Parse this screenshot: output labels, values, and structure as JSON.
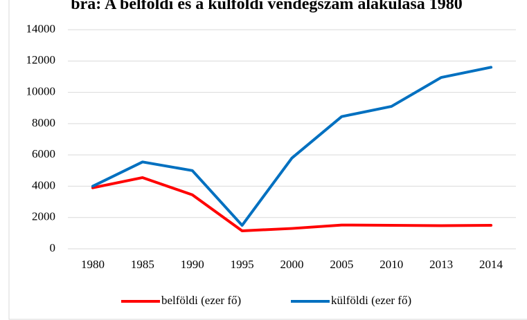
{
  "chart_data": {
    "type": "line",
    "title": "bra: A belföldi és a külföldi vendégszám alakulása 1980",
    "categories": [
      "1980",
      "1985",
      "1990",
      "1995",
      "2000",
      "2005",
      "2010",
      "2013",
      "2014"
    ],
    "series": [
      {
        "name": "belföldi (ezer fő)",
        "color": "#ff0000",
        "values": [
          3900,
          4550,
          3450,
          1150,
          1300,
          1520,
          1500,
          1480,
          1500
        ]
      },
      {
        "name": "külföldi (ezer fő)",
        "color": "#0070c0",
        "values": [
          4000,
          5550,
          5000,
          1500,
          5800,
          8450,
          9100,
          10950,
          11600
        ]
      }
    ],
    "ylim": [
      0,
      14000
    ],
    "yticks": [
      0,
      2000,
      4000,
      6000,
      8000,
      10000,
      12000,
      14000
    ],
    "grid": true,
    "legend": "bottom"
  }
}
